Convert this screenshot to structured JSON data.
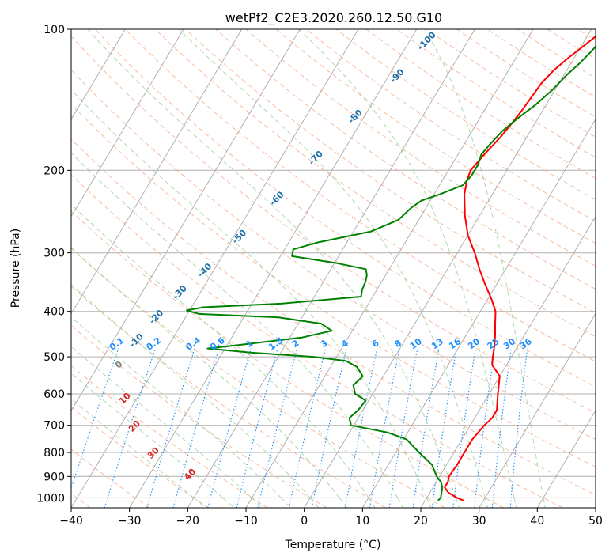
{
  "chart_data": {
    "type": "line",
    "title": "wetPf2_C2E3.2020.260.12.50.G10",
    "xlabel": "Temperature (°C)",
    "ylabel": "Pressure (hPa)",
    "xlim": [
      -40,
      50
    ],
    "ylim": [
      1050,
      100
    ],
    "y_scale": "log",
    "grid": true,
    "x_ticks": [
      -40,
      -30,
      -20,
      -10,
      0,
      10,
      20,
      30,
      40,
      50
    ],
    "x_tick_labels": [
      "−40",
      "−30",
      "−20",
      "−10",
      "0",
      "10",
      "20",
      "30",
      "40",
      "50"
    ],
    "y_ticks": [
      1000,
      900,
      800,
      700,
      600,
      500,
      400,
      300,
      200,
      100
    ],
    "y_tick_labels": [
      "1000",
      "900",
      "800",
      "700",
      "600",
      "500",
      "400",
      "300",
      "200",
      "100"
    ],
    "series": [
      {
        "color": "#ff0000",
        "points": [
          [
            26.6,
            1013
          ],
          [
            25.2,
            1000
          ],
          [
            23.2,
            975
          ],
          [
            22.0,
            950
          ],
          [
            22.0,
            925
          ],
          [
            21.6,
            900
          ],
          [
            21.8,
            850
          ],
          [
            21.8,
            800
          ],
          [
            21.8,
            750
          ],
          [
            22.4,
            700
          ],
          [
            23.0,
            675
          ],
          [
            23.0,
            650
          ],
          [
            21.5,
            600
          ],
          [
            20.0,
            550
          ],
          [
            17.5,
            520
          ],
          [
            16.8,
            500
          ],
          [
            16.0,
            475
          ],
          [
            15.0,
            450
          ],
          [
            13.8,
            425
          ],
          [
            12.6,
            400
          ],
          [
            10.5,
            375
          ],
          [
            8.0,
            350
          ],
          [
            5.5,
            325
          ],
          [
            3.0,
            300
          ],
          [
            0.0,
            275
          ],
          [
            -2.5,
            250
          ],
          [
            -4.8,
            225
          ],
          [
            -5.8,
            210
          ],
          [
            -6.2,
            200
          ],
          [
            -5.5,
            185
          ],
          [
            -4.5,
            170
          ],
          [
            -4.0,
            160
          ],
          [
            -3.6,
            150
          ],
          [
            -3.3,
            140
          ],
          [
            -3.0,
            130
          ],
          [
            -2.2,
            122
          ],
          [
            -1.0,
            115
          ],
          [
            0.5,
            108
          ],
          [
            1.6,
            103
          ],
          [
            2.0,
            100
          ]
        ]
      },
      {
        "color": "#008000",
        "points": [
          [
            22.2,
            1013
          ],
          [
            22.4,
            1000
          ],
          [
            22.0,
            975
          ],
          [
            21.6,
            950
          ],
          [
            20.8,
            925
          ],
          [
            19.5,
            900
          ],
          [
            17.5,
            850
          ],
          [
            14.0,
            800
          ],
          [
            10.5,
            750
          ],
          [
            6.5,
            725
          ],
          [
            -0.5,
            700
          ],
          [
            -1.5,
            675
          ],
          [
            -0.8,
            650
          ],
          [
            -0.5,
            620
          ],
          [
            -3.0,
            600
          ],
          [
            -4.2,
            575
          ],
          [
            -3.5,
            550
          ],
          [
            -5.5,
            525
          ],
          [
            -8.0,
            510
          ],
          [
            -14.0,
            500
          ],
          [
            -25.0,
            490
          ],
          [
            -33.0,
            480
          ],
          [
            -27.0,
            470
          ],
          [
            -18.0,
            455
          ],
          [
            -13.5,
            440
          ],
          [
            -16.0,
            425
          ],
          [
            -24.0,
            412
          ],
          [
            -38.0,
            405
          ],
          [
            -40.5,
            398
          ],
          [
            -38.0,
            392
          ],
          [
            -25.0,
            385
          ],
          [
            -12.0,
            372
          ],
          [
            -12.5,
            360
          ],
          [
            -12.8,
            345
          ],
          [
            -13.2,
            335
          ],
          [
            -14.0,
            325
          ],
          [
            -20.0,
            315
          ],
          [
            -28.0,
            305
          ],
          [
            -28.5,
            295
          ],
          [
            -25.0,
            285
          ],
          [
            -17.0,
            270
          ],
          [
            -13.5,
            255
          ],
          [
            -12.5,
            240
          ],
          [
            -11.5,
            232
          ],
          [
            -9.0,
            225
          ],
          [
            -6.0,
            215
          ],
          [
            -5.5,
            205
          ],
          [
            -5.5,
            195
          ],
          [
            -6.0,
            185
          ],
          [
            -5.5,
            175
          ],
          [
            -4.8,
            165
          ],
          [
            -3.5,
            155
          ],
          [
            -1.8,
            145
          ],
          [
            -0.5,
            135
          ],
          [
            0.5,
            125
          ],
          [
            1.5,
            118
          ],
          [
            2.2,
            112
          ],
          [
            2.8,
            106
          ],
          [
            3.0,
            102
          ],
          [
            3.2,
            100
          ]
        ]
      }
    ],
    "dry_adiabat_labels": [
      "-100",
      "-90",
      "-80",
      "-70",
      "-60",
      "-50",
      "-40",
      "-30",
      "-20",
      "-10",
      "0",
      "10",
      "20",
      "30",
      "40"
    ],
    "mixing_ratio_labels": [
      "0.1",
      "0.2",
      "0.4",
      "0.6",
      "1",
      "1.5",
      "2",
      "3",
      "4",
      "6",
      "8",
      "10",
      "13",
      "16",
      "20",
      "25",
      "30",
      "36"
    ]
  },
  "colors": {
    "temperature": "#ff0000",
    "dewpoint": "#008000",
    "isotherm": "#808080",
    "dry_adiabat": "#f4a582",
    "moist_adiabat": "#8cc88c",
    "mixing_ratio": "#1e90ff",
    "dry_label_cold": "#1f6fa8",
    "dry_label_zero": "#808080",
    "dry_label_warm": "#d62728"
  }
}
